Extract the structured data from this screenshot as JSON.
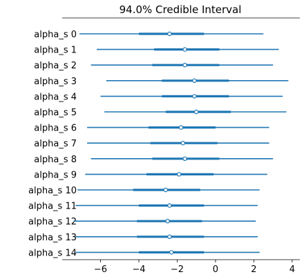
{
  "chart_data": {
    "type": "forest",
    "title": "94.0% Credible Interval",
    "xlabel": "",
    "ylabel": "",
    "xlim": [
      -8.0,
      4.4
    ],
    "xticks": [
      -6,
      -4,
      -2,
      0,
      2,
      4
    ],
    "xtick_labels": [
      "−6",
      "−4",
      "−2",
      "0",
      "2",
      "4"
    ],
    "series_color": "#1f77b4",
    "grid": false,
    "legend": "none",
    "rows": [
      {
        "label": "alpha_s 0",
        "hdi_low": -7.1,
        "hdi_high": 2.5,
        "q_low": -4.0,
        "q_high": -0.6,
        "mean": -2.4
      },
      {
        "label": "alpha_s 1",
        "hdi_low": -6.2,
        "hdi_high": 3.3,
        "q_low": -3.2,
        "q_high": 0.2,
        "mean": -1.6
      },
      {
        "label": "alpha_s 2",
        "hdi_low": -6.5,
        "hdi_high": 3.0,
        "q_low": -3.3,
        "q_high": 0.2,
        "mean": -1.6
      },
      {
        "label": "alpha_s 3",
        "hdi_low": -5.7,
        "hdi_high": 3.8,
        "q_low": -2.8,
        "q_high": 0.7,
        "mean": -1.1
      },
      {
        "label": "alpha_s 4",
        "hdi_low": -6.0,
        "hdi_high": 3.5,
        "q_low": -2.8,
        "q_high": 0.7,
        "mean": -1.1
      },
      {
        "label": "alpha_s 5",
        "hdi_low": -5.8,
        "hdi_high": 3.7,
        "q_low": -2.6,
        "q_high": 0.8,
        "mean": -1.0
      },
      {
        "label": "alpha_s 6",
        "hdi_low": -6.7,
        "hdi_high": 2.8,
        "q_low": -3.5,
        "q_high": 0.0,
        "mean": -1.8
      },
      {
        "label": "alpha_s 7",
        "hdi_low": -6.7,
        "hdi_high": 2.8,
        "q_low": -3.4,
        "q_high": 0.1,
        "mean": -1.7
      },
      {
        "label": "alpha_s 8",
        "hdi_low": -6.5,
        "hdi_high": 3.0,
        "q_low": -3.3,
        "q_high": 0.2,
        "mean": -1.6
      },
      {
        "label": "alpha_s 9",
        "hdi_low": -6.8,
        "hdi_high": 2.7,
        "q_low": -3.6,
        "q_high": -0.1,
        "mean": -1.9
      },
      {
        "label": "alpha_s 10",
        "hdi_low": -7.2,
        "hdi_high": 2.3,
        "q_low": -4.3,
        "q_high": -0.8,
        "mean": -2.6
      },
      {
        "label": "alpha_s 11",
        "hdi_low": -7.3,
        "hdi_high": 2.2,
        "q_low": -4.0,
        "q_high": -0.6,
        "mean": -2.4
      },
      {
        "label": "alpha_s 12",
        "hdi_low": -7.4,
        "hdi_high": 2.1,
        "q_low": -4.1,
        "q_high": -0.7,
        "mean": -2.5
      },
      {
        "label": "alpha_s 13",
        "hdi_low": -7.3,
        "hdi_high": 2.2,
        "q_low": -4.1,
        "q_high": -0.6,
        "mean": -2.4
      },
      {
        "label": "alpha_s 14",
        "hdi_low": -7.3,
        "hdi_high": 2.3,
        "q_low": -4.0,
        "q_high": -0.6,
        "mean": -2.3
      }
    ]
  }
}
